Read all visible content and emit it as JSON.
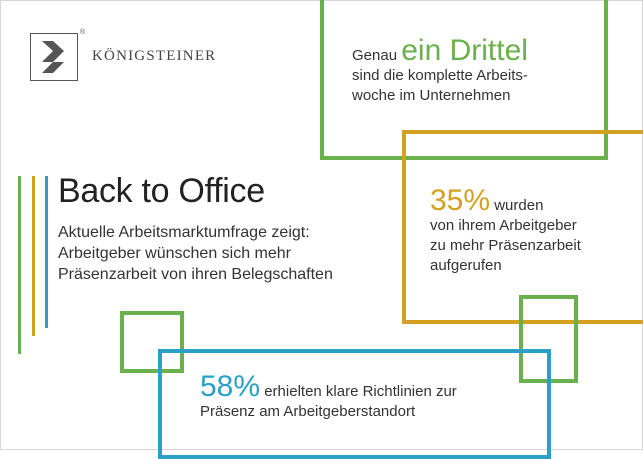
{
  "brand": {
    "name": "KÖNIGSTEINER",
    "registered": "®",
    "icon": "koenigsteiner-chevron-logo"
  },
  "headline": {
    "title": "Back to Office",
    "subtitle_lines": [
      "Aktuelle Arbeitsmarktumfrage zeigt:",
      "Arbeitgeber wünschen sich mehr",
      "Präsenzarbeit von ihren Belegschaften"
    ]
  },
  "stats": {
    "third": {
      "prefix": "Genau ",
      "highlight": "ein Drittel",
      "lines": [
        "sind die komplette Arbeits-",
        "woche im Unternehmen"
      ]
    },
    "thirtyfive": {
      "highlight": "35%",
      "suffix": " wurden",
      "lines": [
        "von ihrem Arbeitgeber",
        "zu mehr Präsenzarbeit",
        "aufgerufen"
      ]
    },
    "fiftyeight": {
      "highlight": "58%",
      "suffix": " erhielten klare Richtlinien zur",
      "lines": [
        "Präsenz am Arbeitgeberstandort"
      ]
    }
  },
  "colors": {
    "green": "#6ab04c",
    "orange": "#d4a020",
    "blue": "#2aa0c8"
  }
}
